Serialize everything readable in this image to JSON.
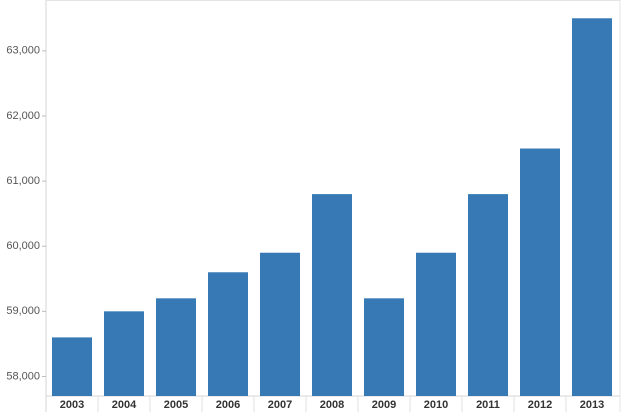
{
  "chart_data": {
    "type": "bar",
    "categories": [
      "2003",
      "2004",
      "2005",
      "2006",
      "2007",
      "2008",
      "2009",
      "2010",
      "2011",
      "2012",
      "2013"
    ],
    "values": [
      58600,
      59000,
      59200,
      59600,
      59900,
      60800,
      59200,
      59900,
      60800,
      61500,
      63500
    ],
    "color": "#3679b4",
    "ylim": [
      57700,
      63750
    ],
    "yticks": [
      {
        "value": 58000,
        "label": "58,000"
      },
      {
        "value": 59000,
        "label": "59,000"
      },
      {
        "value": 60000,
        "label": "60,000"
      },
      {
        "value": 61000,
        "label": "61,000"
      },
      {
        "value": 62000,
        "label": "62,000"
      },
      {
        "value": 63000,
        "label": "63,000"
      }
    ],
    "grid": false
  }
}
